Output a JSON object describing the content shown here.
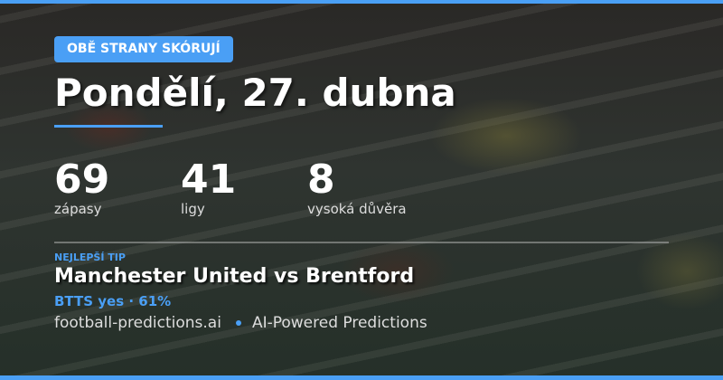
{
  "badge": "OBĚ STRANY SKÓRUJÍ",
  "title": "Pondělí, 27. dubna",
  "stats": [
    {
      "value": "69",
      "label": "zápasy"
    },
    {
      "value": "41",
      "label": "ligy"
    },
    {
      "value": "8",
      "label": "vysoká důvěra"
    }
  ],
  "best_tip": {
    "label": "NEJLEPŠÍ TIP",
    "match": "Manchester United vs Brentford",
    "pick": "BTTS yes · 61%"
  },
  "footer": {
    "site": "football-predictions.ai",
    "tagline": "AI-Powered Predictions"
  },
  "colors": {
    "accent": "#4a9ff5"
  }
}
